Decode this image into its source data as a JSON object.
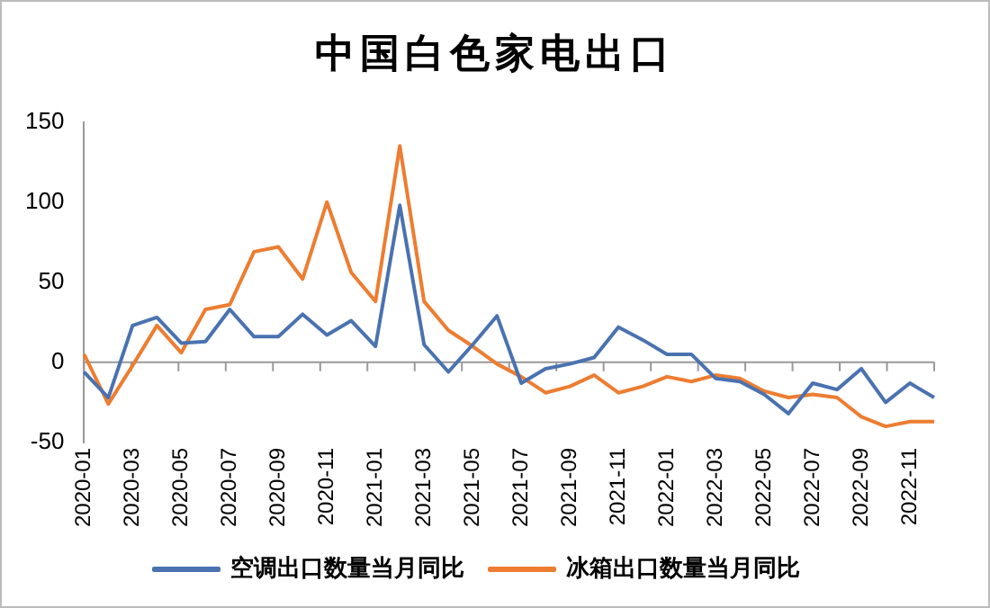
{
  "chart_data": {
    "type": "line",
    "title": "中国白色家电出口",
    "categories": [
      "2020-01",
      null,
      "2020-03",
      null,
      "2020-05",
      null,
      "2020-07",
      null,
      "2020-09",
      null,
      "2020-11",
      null,
      "2021-01",
      null,
      "2021-03",
      null,
      "2021-05",
      null,
      "2021-07",
      null,
      "2021-09",
      null,
      "2021-11",
      null,
      "2022-01",
      null,
      "2022-03",
      null,
      "2022-05",
      null,
      "2022-07",
      null,
      "2022-09",
      null,
      "2022-11",
      null
    ],
    "series": [
      {
        "name": "空调出口数量当月同比",
        "color": "#4a72b0",
        "values": [
          -6,
          -22,
          23,
          28,
          12,
          13,
          33,
          16,
          16,
          30,
          17,
          26,
          10,
          98,
          11,
          -6,
          11,
          29,
          -13,
          -4,
          -1,
          3,
          22,
          14,
          5,
          5,
          -10,
          -12,
          -20,
          -32,
          -13,
          -17,
          -4,
          -25,
          -13,
          -22
        ]
      },
      {
        "name": "冰箱出口数量当月同比",
        "color": "#ed7d31",
        "values": [
          5,
          -26,
          -2,
          23,
          6,
          33,
          36,
          69,
          72,
          52,
          100,
          56,
          38,
          135,
          38,
          20,
          10,
          -1,
          -9,
          -19,
          -15,
          -8,
          -19,
          -15,
          -9,
          -12,
          -8,
          -10,
          -18,
          -22,
          -20,
          -22,
          -34,
          -40,
          -37,
          -37
        ]
      }
    ],
    "ref_lines": [
      {
        "axis": "y",
        "value": 0,
        "color": "#999999"
      }
    ],
    "ylim": [
      -50,
      150
    ],
    "yticks": [
      -50,
      0,
      50,
      100,
      150
    ],
    "grid": false,
    "legend": "bottom",
    "marker": "none",
    "line_style": "solid"
  }
}
